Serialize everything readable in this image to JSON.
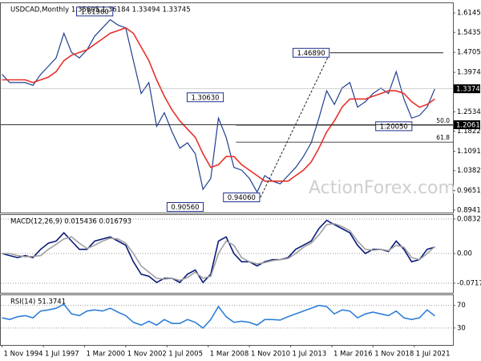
{
  "chart_data": [
    {
      "type": "line",
      "title": "USDCAD,Monthly  1.35605 1.36184 1.33494 1.33745",
      "watermark": "ActionForex.com",
      "x": [
        1994.83,
        1995.33,
        1995.83,
        1996.33,
        1996.83,
        1997.33,
        1997.83,
        1998.33,
        1998.83,
        1999.33,
        1999.83,
        2000.33,
        2000.83,
        2001.33,
        2001.83,
        2002.33,
        2002.83,
        2003.33,
        2003.83,
        2004.33,
        2004.83,
        2005.33,
        2005.83,
        2006.33,
        2006.83,
        2007.33,
        2007.83,
        2008.33,
        2008.83,
        2009.33,
        2009.83,
        2010.33,
        2010.83,
        2011.33,
        2011.83,
        2012.33,
        2012.83,
        2013.33,
        2013.83,
        2014.33,
        2014.83,
        2015.33,
        2015.83,
        2016.33,
        2016.83,
        2017.33,
        2017.83,
        2018.33,
        2018.83,
        2019.33,
        2019.83,
        2020.33,
        2020.83,
        2021.33,
        2021.83,
        2022.33,
        2022.83
      ],
      "series": [
        {
          "color": "#1f3f8f",
          "values": [
            1.39,
            1.36,
            1.36,
            1.36,
            1.35,
            1.39,
            1.42,
            1.45,
            1.54,
            1.47,
            1.45,
            1.48,
            1.53,
            1.56,
            1.59,
            1.57,
            1.56,
            1.44,
            1.32,
            1.36,
            1.2,
            1.25,
            1.18,
            1.12,
            1.14,
            1.1,
            0.97,
            1.01,
            1.23,
            1.16,
            1.05,
            1.04,
            1.01,
            0.96,
            1.02,
            1.0,
            0.99,
            1.02,
            1.05,
            1.09,
            1.14,
            1.23,
            1.33,
            1.28,
            1.34,
            1.36,
            1.27,
            1.29,
            1.32,
            1.34,
            1.32,
            1.4,
            1.3,
            1.23,
            1.24,
            1.27,
            1.3374
          ]
        },
        {
          "color": "#e8302a",
          "values": [
            1.37,
            1.37,
            1.37,
            1.37,
            1.36,
            1.37,
            1.38,
            1.4,
            1.44,
            1.46,
            1.47,
            1.48,
            1.5,
            1.52,
            1.54,
            1.55,
            1.56,
            1.54,
            1.49,
            1.44,
            1.37,
            1.31,
            1.26,
            1.22,
            1.19,
            1.16,
            1.1,
            1.05,
            1.06,
            1.09,
            1.09,
            1.06,
            1.04,
            1.02,
            1.0,
            1.0,
            1.0,
            1.0,
            1.02,
            1.04,
            1.07,
            1.12,
            1.18,
            1.22,
            1.27,
            1.3,
            1.3,
            1.3,
            1.31,
            1.32,
            1.33,
            1.33,
            1.32,
            1.29,
            1.27,
            1.28,
            1.3
          ]
        }
      ],
      "xlim": [
        1994.75,
        2024.0
      ],
      "ylim": [
        0.885,
        1.65
      ],
      "yticks": [
        {
          "value": 1.6145,
          "label": "1.61450"
        },
        {
          "value": 1.5435,
          "label": "1.54350"
        },
        {
          "value": 1.4705,
          "label": "1.47050"
        },
        1.39745,
        {
          "value": 1.2534,
          "label": "1.25340"
        },
        1.18225,
        1.10915,
        {
          "value": 1.0382,
          "label": "1.03820"
        },
        0.96515,
        0.89415
      ],
      "annotations": [
        {
          "x": 2002.05,
          "value": 1.6196,
          "label": "1.61960"
        },
        {
          "x": 2009.2,
          "value": 1.3063,
          "label": "1.30630"
        },
        {
          "x": 2007.9,
          "value": 0.9056,
          "label": "0.90560"
        },
        {
          "x": 2011.55,
          "value": 0.9406,
          "label": "0.94060"
        },
        {
          "x": 2016.05,
          "value": 1.4689,
          "label": "1.46890"
        },
        {
          "x": 2021.4,
          "value": 1.2005,
          "label": "1.20050"
        }
      ],
      "fib_levels": [
        {
          "value": 1.2048,
          "label": "50.0"
        },
        {
          "value": 1.1424,
          "label": "61.8"
        }
      ],
      "price_labels": [
        1.33745,
        {
          "value": 1.2061,
          "label": "1.20610"
        }
      ]
    },
    {
      "type": "line",
      "title": "MACD(12,26,9) 0.015436 0.016793",
      "x": [
        1994.83,
        1995.33,
        1995.83,
        1996.33,
        1996.83,
        1997.33,
        1997.83,
        1998.33,
        1998.83,
        1999.33,
        1999.83,
        2000.33,
        2000.83,
        2001.33,
        2001.83,
        2002.33,
        2002.83,
        2003.33,
        2003.83,
        2004.33,
        2004.83,
        2005.33,
        2005.83,
        2006.33,
        2006.83,
        2007.33,
        2007.83,
        2008.33,
        2008.83,
        2009.33,
        2009.83,
        2010.33,
        2010.83,
        2011.33,
        2011.83,
        2012.33,
        2012.83,
        2013.33,
        2013.83,
        2014.33,
        2014.83,
        2015.33,
        2015.83,
        2016.33,
        2016.83,
        2017.33,
        2017.83,
        2018.33,
        2018.83,
        2019.33,
        2019.83,
        2020.33,
        2020.83,
        2021.33,
        2021.83,
        2022.33,
        2022.83
      ],
      "series": [
        {
          "color": "#0a1a7a",
          "values": [
            0.0,
            -0.005,
            -0.01,
            -0.005,
            -0.01,
            0.01,
            0.025,
            0.03,
            0.05,
            0.03,
            0.01,
            0.01,
            0.03,
            0.035,
            0.04,
            0.03,
            0.02,
            -0.02,
            -0.05,
            -0.055,
            -0.07,
            -0.06,
            -0.06,
            -0.07,
            -0.05,
            -0.04,
            -0.07,
            -0.05,
            0.03,
            0.04,
            0.0,
            -0.02,
            -0.02,
            -0.03,
            -0.02,
            -0.015,
            -0.015,
            -0.01,
            0.01,
            0.02,
            0.03,
            0.06,
            0.08,
            0.07,
            0.06,
            0.05,
            0.02,
            0.0,
            0.01,
            0.01,
            0.005,
            0.03,
            0.01,
            -0.02,
            -0.015,
            0.01,
            0.0154
          ]
        },
        {
          "color": "#a0a0a0",
          "values": [
            0.0,
            0.0,
            -0.005,
            -0.008,
            -0.007,
            -0.005,
            0.01,
            0.022,
            0.035,
            0.04,
            0.025,
            0.012,
            0.02,
            0.03,
            0.037,
            0.035,
            0.025,
            0.0,
            -0.03,
            -0.045,
            -0.06,
            -0.062,
            -0.06,
            -0.065,
            -0.058,
            -0.045,
            -0.06,
            -0.055,
            0.0,
            0.03,
            0.02,
            -0.01,
            -0.02,
            -0.025,
            -0.022,
            -0.017,
            -0.015,
            -0.012,
            0.0,
            0.015,
            0.025,
            0.045,
            0.07,
            0.072,
            0.065,
            0.055,
            0.03,
            0.01,
            0.008,
            0.01,
            0.007,
            0.02,
            0.015,
            -0.01,
            -0.015,
            0.0,
            0.0168
          ]
        }
      ],
      "xlim": [
        1994.75,
        2024.0
      ],
      "ylim": [
        -0.095,
        0.093
      ],
      "yticks": [
        0.083235,
        {
          "value": 0,
          "label": "0.00"
        },
        -0.071752
      ],
      "grid": true
    },
    {
      "type": "line",
      "title": "RSI(14) 51.3741",
      "x": [
        1994.83,
        1995.33,
        1995.83,
        1996.33,
        1996.83,
        1997.33,
        1997.83,
        1998.33,
        1998.83,
        1999.33,
        1999.83,
        2000.33,
        2000.83,
        2001.33,
        2001.83,
        2002.33,
        2002.83,
        2003.33,
        2003.83,
        2004.33,
        2004.83,
        2005.33,
        2005.83,
        2006.33,
        2006.83,
        2007.33,
        2007.83,
        2008.33,
        2008.83,
        2009.33,
        2009.83,
        2010.33,
        2010.83,
        2011.33,
        2011.83,
        2012.33,
        2012.83,
        2013.33,
        2013.83,
        2014.33,
        2014.83,
        2015.33,
        2015.83,
        2016.33,
        2016.83,
        2017.33,
        2017.83,
        2018.33,
        2018.83,
        2019.33,
        2019.83,
        2020.33,
        2020.83,
        2021.33,
        2021.83,
        2022.33,
        2022.83
      ],
      "series": [
        {
          "color": "#2f7fd8",
          "values": [
            48,
            45,
            50,
            52,
            48,
            60,
            62,
            65,
            72,
            55,
            52,
            60,
            62,
            60,
            65,
            58,
            52,
            40,
            35,
            42,
            35,
            45,
            38,
            38,
            45,
            40,
            30,
            45,
            68,
            50,
            40,
            42,
            40,
            35,
            45,
            45,
            44,
            50,
            55,
            60,
            65,
            70,
            68,
            55,
            62,
            60,
            48,
            55,
            58,
            55,
            52,
            60,
            48,
            45,
            48,
            62,
            51.37
          ]
        }
      ],
      "xlim": [
        1994.75,
        2024.0
      ],
      "ylim": [
        0,
        88
      ],
      "yticks": [
        70,
        30
      ],
      "grid": true,
      "xticks": [
        {
          "value": 1994.83,
          "label": "1 Nov 1994"
        },
        {
          "value": 1997.5,
          "label": "1 Jul 1997"
        },
        {
          "value": 2000.17,
          "label": "1 Mar 2000"
        },
        {
          "value": 2002.83,
          "label": "1 Nov 2002"
        },
        {
          "value": 2005.5,
          "label": "1 Jul 2005"
        },
        {
          "value": 2008.17,
          "label": "1 Mar 2008"
        },
        {
          "value": 2010.83,
          "label": "1 Nov 2010"
        },
        {
          "value": 2013.5,
          "label": "1 Jul 2013"
        },
        {
          "value": 2016.17,
          "label": "1 Mar 2016"
        },
        {
          "value": 2018.83,
          "label": "1 Nov 2018"
        },
        {
          "value": 2021.5,
          "label": "1 Jul 2021"
        }
      ]
    }
  ]
}
